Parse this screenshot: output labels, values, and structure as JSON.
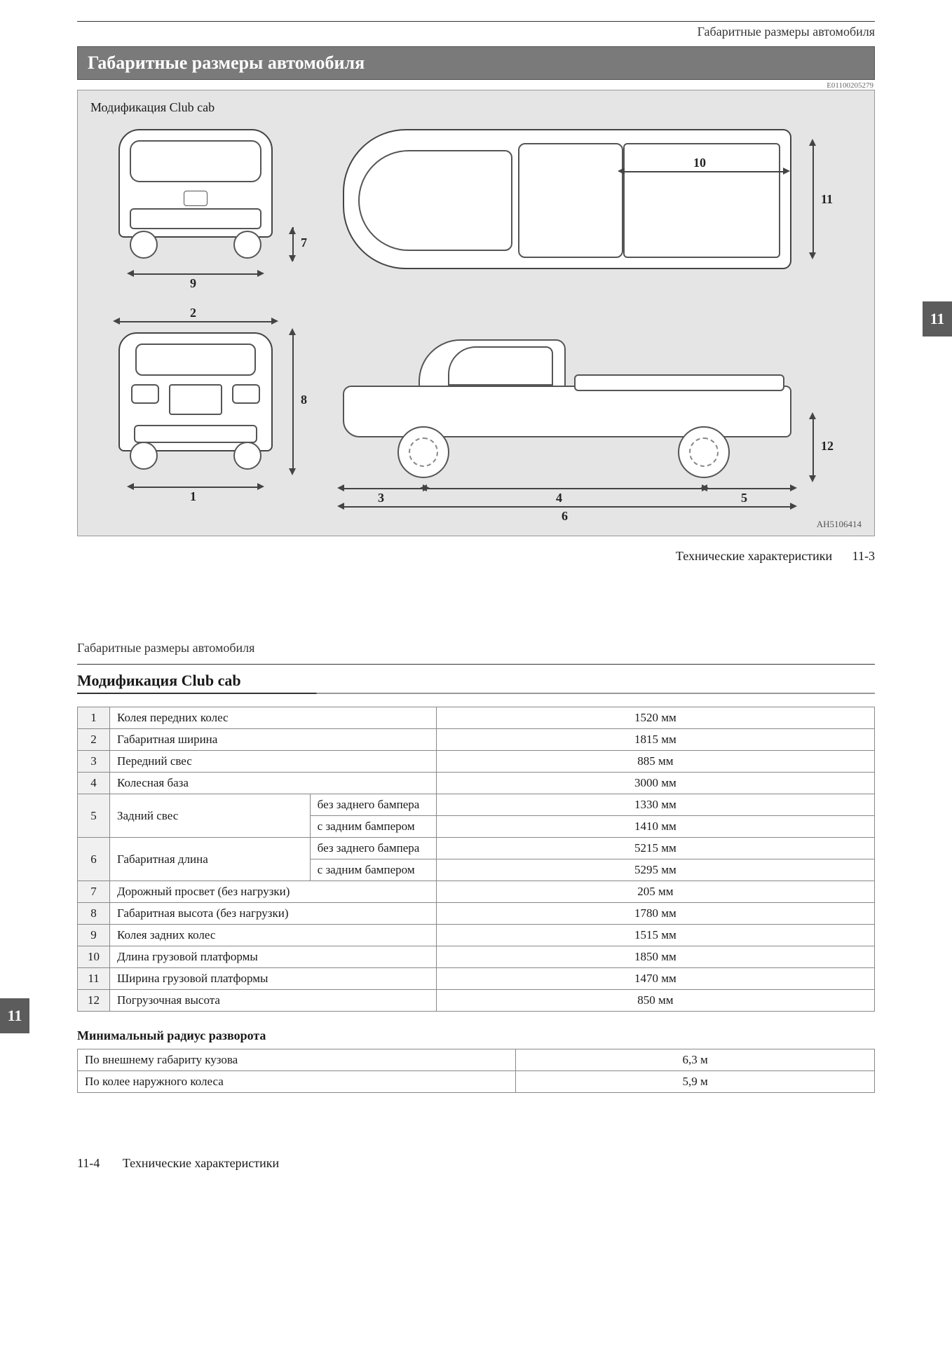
{
  "header_running": "Габаритные размеры автомобиля",
  "title_bar": "Габаритные размеры автомобиля",
  "ref_code_top": "E01100205279",
  "diagram": {
    "caption": "Модификация Club cab",
    "footer_code": "AH5106414",
    "labels": {
      "d1": "1",
      "d2": "2",
      "d3": "3",
      "d4": "4",
      "d5": "5",
      "d6": "6",
      "d7": "7",
      "d8": "8",
      "d9": "9",
      "d10": "10",
      "d11": "11",
      "d12": "12"
    }
  },
  "page1_footer_section": "Технические характеристики",
  "page1_footer_num": "11-3",
  "side_tab": "11",
  "page2_running": "Габаритные размеры автомобиля",
  "page2_section_title": "Модификация Club cab",
  "spec_table": {
    "rows": [
      {
        "n": "1",
        "label": "Колея передних колес",
        "value": "1520 мм"
      },
      {
        "n": "2",
        "label": "Габаритная ширина",
        "value": "1815 мм"
      },
      {
        "n": "3",
        "label": "Передний свес",
        "value": "885 мм"
      },
      {
        "n": "4",
        "label": "Колесная база",
        "value": "3000 мм"
      }
    ],
    "row5": {
      "n": "5",
      "label": "Задний свес",
      "sub1": "без заднего бампера",
      "val1": "1330 мм",
      "sub2": "с задним бампером",
      "val2": "1410 мм"
    },
    "row6": {
      "n": "6",
      "label": "Габаритная длина",
      "sub1": "без заднего бампера",
      "val1": "5215 мм",
      "sub2": "с задним бампером",
      "val2": "5295 мм"
    },
    "rows_after": [
      {
        "n": "7",
        "label": "Дорожный просвет (без нагрузки)",
        "value": "205 мм"
      },
      {
        "n": "8",
        "label": "Габаритная высота (без нагрузки)",
        "value": "1780 мм"
      },
      {
        "n": "9",
        "label": "Колея задних колес",
        "value": "1515 мм"
      },
      {
        "n": "10",
        "label": "Длина грузовой платформы",
        "value": "1850 мм"
      },
      {
        "n": "11",
        "label": "Ширина грузовой платформы",
        "value": "1470 мм"
      },
      {
        "n": "12",
        "label": "Погрузочная высота",
        "value": "850 мм"
      }
    ]
  },
  "turn_title": "Минимальный радиус разворота",
  "turn_table": [
    {
      "label": "По внешнему габариту кузова",
      "value": "6,3 м"
    },
    {
      "label": "По колее наружного колеса",
      "value": "5,9 м"
    }
  ],
  "page2_footer_num": "11-4",
  "page2_footer_section": "Технические характеристики"
}
